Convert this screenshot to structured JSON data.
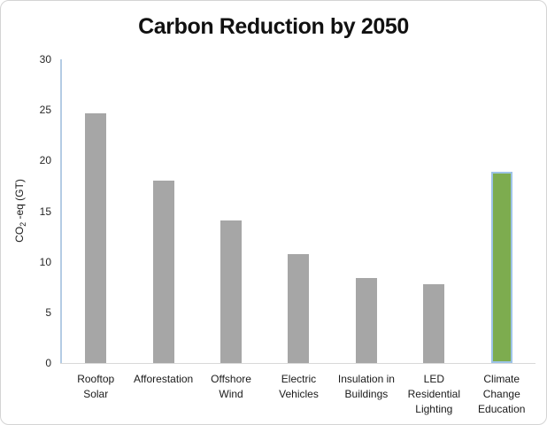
{
  "chart_data": {
    "type": "bar",
    "title": "Carbon Reduction by 2050",
    "ylabel": "CO2 -eq (GT)",
    "ylabel_parts": {
      "base": "CO",
      "sub": "2",
      "rest": " -eq (GT)"
    },
    "xlabel": "",
    "categories": [
      "Rooftop\nSolar",
      "Afforestation",
      "Offshore\nWind",
      "Electric\nVehicles",
      "Insulation in\nBuildings",
      "LED\nResidential\nLighting",
      "Climate\nChange\nEducation"
    ],
    "values": [
      24.7,
      18.0,
      14.1,
      10.8,
      8.4,
      7.8,
      18.9
    ],
    "ylim": [
      0,
      30
    ],
    "yticks": [
      0,
      5,
      10,
      15,
      20,
      25,
      30
    ],
    "grid": false,
    "legend": false,
    "bar_color": "#a6a6a6",
    "highlight_index": 6,
    "highlight_color": "#7dac4f",
    "highlight_border_color": "#9dc3e6",
    "y_axis_line_color": "#b4cce4",
    "baseline_color": "#d9d9d9",
    "title_color": "#111111"
  }
}
